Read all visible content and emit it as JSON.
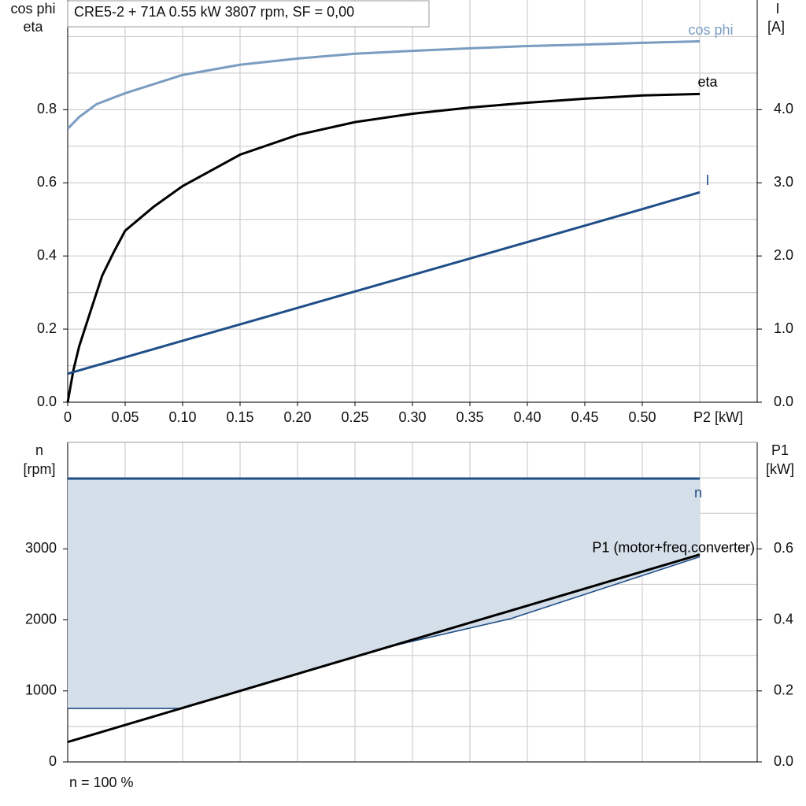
{
  "chart_data": [
    {
      "type": "line",
      "title": "CRE5-2 + 71A   0.55 kW   3807 rpm, SF = 0,00",
      "ylabel": [
        "cos phi",
        "eta"
      ],
      "y2label": [
        "I",
        "[A]"
      ],
      "xlabel": "P2 [kW]",
      "xlim": [
        0,
        0.6
      ],
      "ylim": [
        0,
        1.1
      ],
      "y2lim": [
        0,
        5.5
      ],
      "grid": true,
      "xticks": [
        0,
        0.05,
        {
          "value": 0.1,
          "label": "0.10"
        },
        0.15,
        {
          "value": 0.2,
          "label": "0.20"
        },
        0.25,
        {
          "value": 0.3,
          "label": "0.30"
        },
        0.35,
        {
          "value": 0.4,
          "label": "0.40"
        },
        0.45,
        {
          "value": 0.5,
          "label": "0.50"
        }
      ],
      "yticks": [
        {
          "value": 0,
          "label": "0.0"
        },
        0.2,
        0.4,
        0.6,
        0.8
      ],
      "y2ticks": [
        {
          "value": 0,
          "label": "0.0"
        },
        {
          "value": 1,
          "label": "1.0"
        },
        {
          "value": 2,
          "label": "2.0"
        },
        {
          "value": 3,
          "label": "3.0"
        },
        {
          "value": 4,
          "label": "4.0"
        }
      ],
      "series": [
        {
          "name": "cos phi",
          "color": "#7a9cc0",
          "x": [
            0,
            0.01,
            0.025,
            0.05,
            0.1,
            0.15,
            0.2,
            0.25,
            0.3,
            0.35,
            0.4,
            0.45,
            0.5,
            0.55
          ],
          "values": [
            0.748,
            0.78,
            0.815,
            0.845,
            0.895,
            0.923,
            0.94,
            0.953,
            0.961,
            0.968,
            0.974,
            0.978,
            0.983,
            0.987
          ]
        },
        {
          "name": "eta",
          "color": "#000000",
          "x": [
            0,
            0.005,
            0.01,
            0.02,
            0.03,
            0.04,
            0.05,
            0.075,
            0.1,
            0.15,
            0.2,
            0.25,
            0.3,
            0.35,
            0.4,
            0.45,
            0.5,
            0.55
          ],
          "values": [
            0,
            0.088,
            0.153,
            0.25,
            0.346,
            0.41,
            0.469,
            0.535,
            0.591,
            0.677,
            0.731,
            0.766,
            0.789,
            0.806,
            0.819,
            0.83,
            0.839,
            0.843
          ]
        },
        {
          "name": "I",
          "color": "#1f4e88",
          "axis": "y2",
          "x": [
            0,
            0.1,
            0.2,
            0.3,
            0.4,
            0.5,
            0.55
          ],
          "values": [
            0.39,
            0.84,
            1.29,
            1.74,
            2.19,
            2.64,
            2.87
          ]
        }
      ]
    },
    {
      "type": "area",
      "ylabel": [
        "n",
        "[rpm]"
      ],
      "y2label": [
        "P1",
        "[kW]"
      ],
      "note": "n = 100 %",
      "xlim": [
        0,
        0.6
      ],
      "ylim": [
        0,
        4500
      ],
      "y2lim": [
        0,
        0.9
      ],
      "grid": true,
      "yticks": [
        0,
        1000,
        2000,
        3000
      ],
      "y2ticks": [
        {
          "value": 0,
          "label": "0.0"
        },
        0.2,
        0.4,
        0.6
      ],
      "series": [
        {
          "name": "n",
          "color": "#1f4e88",
          "fill": "#d3dde8",
          "x": [
            0,
            0.1,
            0.15,
            0.275,
            0.385,
            0.55
          ],
          "values": [
            3990,
            3990,
            3990,
            3990,
            3990,
            3990
          ],
          "low": [
            753,
            753,
            1007,
            1605,
            2015,
            2889
          ]
        },
        {
          "name": "P1 (motor+freq.converter)",
          "color": "#000000",
          "axis": "y2",
          "x": [
            0,
            0.55
          ],
          "values": [
            0.056,
            0.584
          ]
        }
      ]
    }
  ]
}
